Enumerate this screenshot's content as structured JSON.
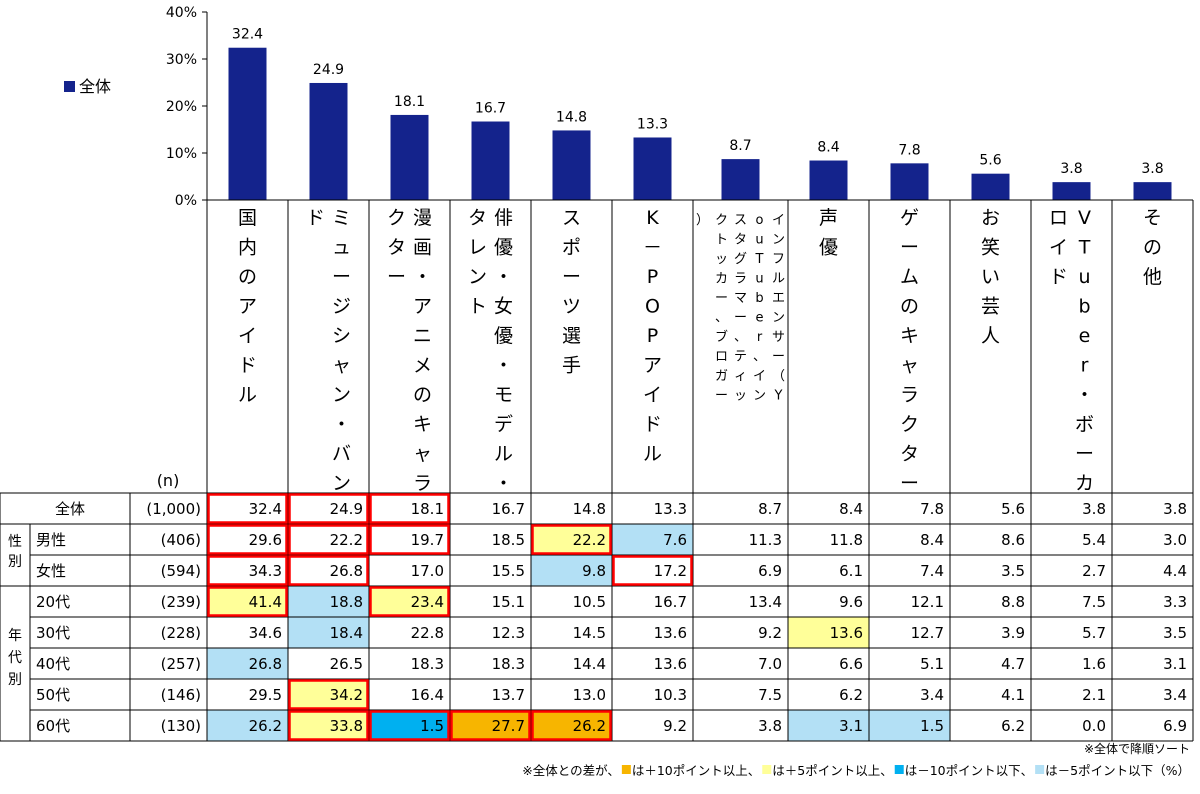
{
  "chart_data": {
    "type": "bar",
    "series": [
      {
        "name": "全体",
        "values": [
          32.4,
          24.9,
          18.1,
          16.7,
          14.8,
          13.3,
          8.7,
          8.4,
          7.8,
          5.6,
          3.8,
          3.8
        ]
      }
    ],
    "categories": [
      "国内のアイドル",
      "ミュージシャン・バンド",
      "漫画・アニメのキャラクター",
      "俳優・女優・モデル・タレント",
      "スポーツ選手",
      "K－POPアイドル",
      "インフルエンサー（YouTuber、インスタグラマー、ティックトッカー、ブロガー）",
      "声優",
      "ゲームのキャラクター",
      "お笑い芸人",
      "VTuber・ボーカロイド",
      "その他"
    ],
    "yticks": [
      "0%",
      "10%",
      "20%",
      "30%",
      "40%"
    ],
    "ylim": [
      0,
      40
    ],
    "bar_color": "#14238c",
    "legend_position": "left"
  },
  "table": {
    "n_header": "(n)",
    "group_labels": [
      "性別",
      "年代別"
    ],
    "rows": [
      {
        "label": "全体",
        "n": "(1,000)",
        "values": [
          "32.4",
          "24.9",
          "18.1",
          "16.7",
          "14.8",
          "13.3",
          "8.7",
          "8.4",
          "7.8",
          "5.6",
          "3.8",
          "3.8"
        ],
        "marks": [
          "R",
          "R",
          "R",
          "",
          "",
          "",
          "",
          "",
          "",
          "",
          "",
          ""
        ]
      },
      {
        "label": "男性",
        "n": "(406)",
        "values": [
          "29.6",
          "22.2",
          "19.7",
          "18.5",
          "22.2",
          "7.6",
          "11.3",
          "11.8",
          "8.4",
          "8.6",
          "5.4",
          "3.0"
        ],
        "marks": [
          "R",
          "R",
          "R",
          "",
          "YR",
          "L",
          "",
          "",
          "",
          "",
          "",
          ""
        ]
      },
      {
        "label": "女性",
        "n": "(594)",
        "values": [
          "34.3",
          "26.8",
          "17.0",
          "15.5",
          "9.8",
          "17.2",
          "6.9",
          "6.1",
          "7.4",
          "3.5",
          "2.7",
          "4.4"
        ],
        "marks": [
          "R",
          "R",
          "",
          "",
          "L",
          "R",
          "",
          "",
          "",
          "",
          "",
          ""
        ]
      },
      {
        "label": "20代",
        "n": "(239)",
        "values": [
          "41.4",
          "18.8",
          "23.4",
          "15.1",
          "10.5",
          "16.7",
          "13.4",
          "9.6",
          "12.1",
          "8.8",
          "7.5",
          "3.3"
        ],
        "marks": [
          "YR",
          "L",
          "YR",
          "",
          "",
          "",
          "",
          "",
          "",
          "",
          "",
          ""
        ]
      },
      {
        "label": "30代",
        "n": "(228)",
        "values": [
          "34.6",
          "18.4",
          "22.8",
          "12.3",
          "14.5",
          "13.6",
          "9.2",
          "13.6",
          "12.7",
          "3.9",
          "5.7",
          "3.5"
        ],
        "marks": [
          "",
          "L",
          "",
          "",
          "",
          "",
          "",
          "Y",
          "",
          "",
          "",
          ""
        ]
      },
      {
        "label": "40代",
        "n": "(257)",
        "values": [
          "26.8",
          "26.5",
          "18.3",
          "18.3",
          "14.4",
          "13.6",
          "7.0",
          "6.6",
          "5.1",
          "4.7",
          "1.6",
          "3.1"
        ],
        "marks": [
          "L",
          "",
          "",
          "",
          "",
          "",
          "",
          "",
          "",
          "",
          "",
          ""
        ]
      },
      {
        "label": "50代",
        "n": "(146)",
        "values": [
          "29.5",
          "34.2",
          "16.4",
          "13.7",
          "13.0",
          "10.3",
          "7.5",
          "6.2",
          "3.4",
          "4.1",
          "2.1",
          "3.4"
        ],
        "marks": [
          "",
          "YR",
          "",
          "",
          "",
          "",
          "",
          "",
          "",
          "",
          "",
          ""
        ]
      },
      {
        "label": "60代",
        "n": "(130)",
        "values": [
          "26.2",
          "33.8",
          "1.5",
          "27.7",
          "26.2",
          "9.2",
          "3.8",
          "3.1",
          "1.5",
          "6.2",
          "0.0",
          "6.9"
        ],
        "marks": [
          "L",
          "YR",
          "BR",
          "OR",
          "OR",
          "",
          "",
          "L",
          "L",
          "",
          "",
          ""
        ]
      }
    ]
  },
  "colors": {
    "orange": "#f7b500",
    "yellow": "#ffff99",
    "blue": "#00b0f0",
    "lightblue": "#b3e0f5",
    "red_border": "#ff0000",
    "grid": "#000000"
  },
  "notes": {
    "sort_note": "※全体で降順ソート",
    "legend_prefix": "※全体との差が、",
    "items": [
      {
        "color": "orange",
        "text": "は＋10ポイント以上、"
      },
      {
        "color": "yellow",
        "text": "は＋5ポイント以上、"
      },
      {
        "color": "blue",
        "text": "は－10ポイント以下、"
      },
      {
        "color": "lightblue",
        "text": "は－5ポイント以下"
      }
    ],
    "unit": "（%）"
  }
}
